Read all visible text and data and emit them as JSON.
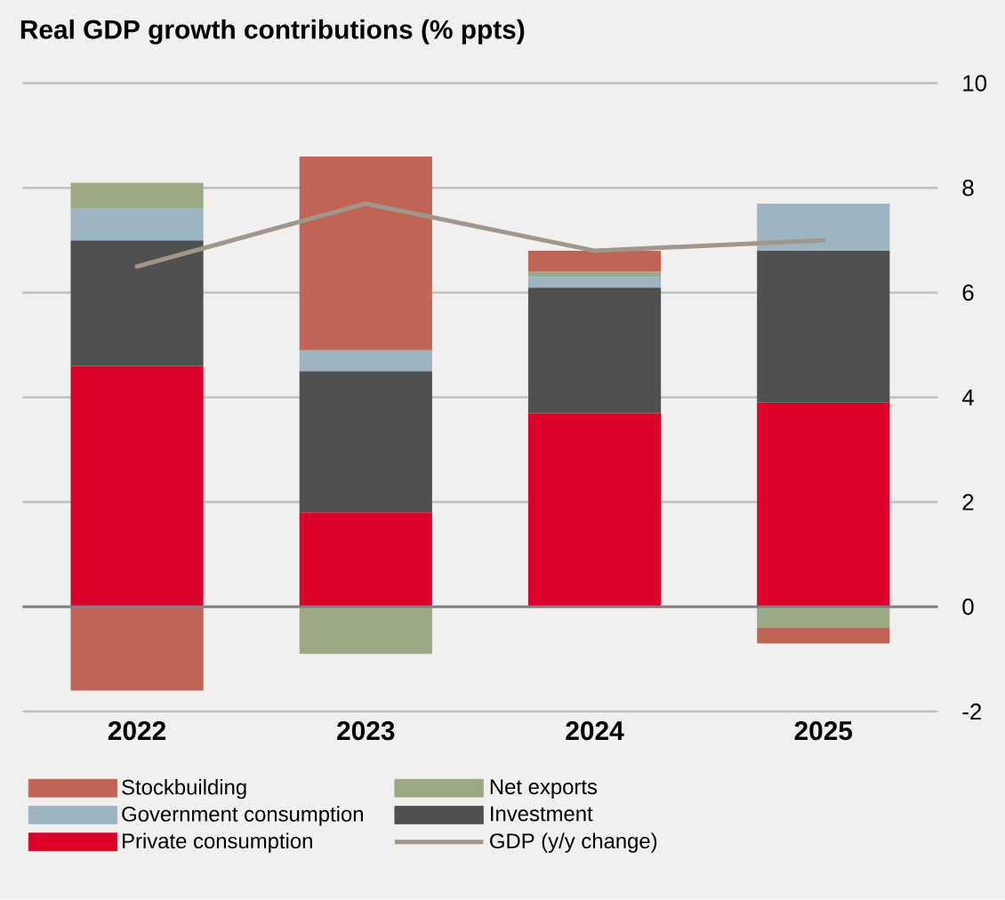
{
  "chart_data": {
    "type": "bar",
    "title": "Real GDP growth contributions (% ppts)",
    "categories": [
      "2022",
      "2023",
      "2024",
      "2025"
    ],
    "stacked": true,
    "series": [
      {
        "name": "Private consumption",
        "color": "#db0029",
        "values": [
          4.6,
          1.8,
          3.7,
          3.9
        ]
      },
      {
        "name": "Investment",
        "color": "#505050",
        "values": [
          2.4,
          2.7,
          2.4,
          2.9
        ]
      },
      {
        "name": "Government consumption",
        "color": "#9db4c2",
        "values": [
          0.6,
          0.4,
          0.2,
          0.9
        ]
      },
      {
        "name": "Net exports",
        "color": "#9aa986",
        "values": [
          0.5,
          -0.9,
          0.1,
          -0.4
        ]
      },
      {
        "name": "Stockbuilding",
        "color": "#c06556",
        "values": [
          -1.6,
          3.7,
          0.4,
          -0.3
        ]
      },
      {
        "name": "GDP (y/y change)",
        "type": "line",
        "color": "#a0978a",
        "values": [
          6.5,
          7.7,
          6.8,
          7.0
        ]
      }
    ],
    "ylim": [
      -2,
      10
    ],
    "yticks": [
      -2,
      0,
      2,
      4,
      6,
      8,
      10
    ],
    "grid": "y",
    "legend": "bottom",
    "ref_lines": [
      {
        "axis": "y",
        "value": 0,
        "color": "#808080"
      }
    ]
  }
}
